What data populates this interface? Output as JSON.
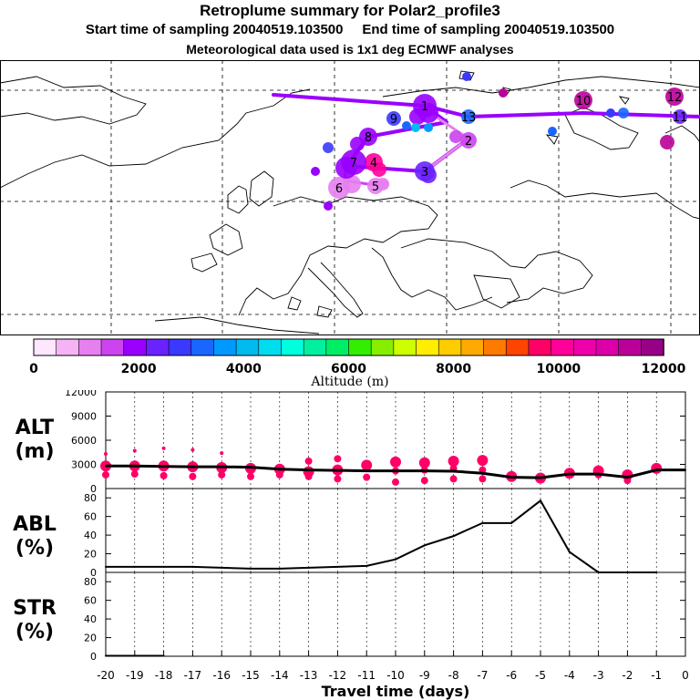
{
  "header": {
    "title": "Retroplume summary for Polar2_profile3",
    "sampling_line": "Start time of sampling 20040519.103500     End time of sampling 20040519.103500",
    "met_line": "Meteorological data used is 1x1 deg ECMWF analyses"
  },
  "colorbar": {
    "tick_labels": [
      "0",
      "2000",
      "4000",
      "6000",
      "8000",
      "10000",
      "12000"
    ],
    "label": "Altitude (m)",
    "colors": [
      "#ffe6ff",
      "#f5b3f5",
      "#e680f0",
      "#cc44ee",
      "#9900ff",
      "#6a22ff",
      "#3a3aff",
      "#1a66ff",
      "#0099ff",
      "#00bbee",
      "#00ddee",
      "#00ffdd",
      "#00f0a0",
      "#00ee66",
      "#33ee00",
      "#88ee00",
      "#ccff00",
      "#ffee00",
      "#ffcc00",
      "#ffaa00",
      "#ff7a00",
      "#ff4400",
      "#ff0066",
      "#ff0099",
      "#ee00aa",
      "#dd00aa",
      "#bb0099",
      "#990088"
    ]
  },
  "map": {
    "trajectory_labels": [
      "1",
      "2",
      "3",
      "4",
      "5",
      "6",
      "7",
      "8",
      "9",
      "10",
      "11",
      "12",
      "13"
    ],
    "clusters": [
      {
        "label": "1",
        "color": "#9900ff"
      },
      {
        "label": "2",
        "color": "#cc44ee"
      },
      {
        "label": "3",
        "color": "#6a22ff"
      },
      {
        "label": "4",
        "color": "#ff0099"
      },
      {
        "label": "5",
        "color": "#e680f0"
      },
      {
        "label": "6",
        "color": "#e680f0"
      },
      {
        "label": "7",
        "color": "#9900ff"
      },
      {
        "label": "8",
        "color": "#9900ff"
      },
      {
        "label": "9",
        "color": "#3a3aff"
      },
      {
        "label": "10",
        "color": "#bb0099"
      },
      {
        "label": "11",
        "color": "#6a22ff"
      },
      {
        "label": "12",
        "color": "#bb0099"
      },
      {
        "label": "13",
        "color": "#1a66ff"
      }
    ]
  },
  "chart_data": [
    {
      "type": "line",
      "panel": "ALT",
      "ylabel_line1": "ALT",
      "ylabel_line2": "(m)",
      "ylim": [
        0,
        12000
      ],
      "yticks": [
        "0",
        "3000",
        "6000",
        "9000",
        "12000"
      ],
      "x": [
        -20,
        -19,
        -18,
        -17,
        -16,
        -15,
        -14,
        -13,
        -12,
        -11,
        -10,
        -9,
        -8,
        -7,
        -6,
        -5,
        -4,
        -3,
        -2,
        -1,
        0
      ],
      "values": [
        2800,
        2800,
        2750,
        2700,
        2700,
        2650,
        2400,
        2300,
        2250,
        2200,
        2200,
        2200,
        2150,
        1900,
        1400,
        1350,
        1800,
        1800,
        1400,
        2300,
        2300
      ],
      "cluster_altitudes": [
        {
          "x": -20,
          "y": [
            2800,
            4300,
            1700
          ]
        },
        {
          "x": -19,
          "y": [
            2800,
            4700,
            1800
          ]
        },
        {
          "x": -18,
          "y": [
            2800,
            5000,
            1600
          ]
        },
        {
          "x": -17,
          "y": [
            2700,
            4800,
            1500
          ]
        },
        {
          "x": -16,
          "y": [
            2600,
            4400,
            1700
          ]
        },
        {
          "x": -15,
          "y": [
            2500,
            1500
          ]
        },
        {
          "x": -14,
          "y": [
            2400,
            1700
          ]
        },
        {
          "x": -13,
          "y": [
            2100,
            3400,
            1500
          ]
        },
        {
          "x": -12,
          "y": [
            2300,
            3700,
            1200
          ]
        },
        {
          "x": -11,
          "y": [
            2900,
            1400
          ]
        },
        {
          "x": -10,
          "y": [
            3300,
            2200,
            800
          ]
        },
        {
          "x": -9,
          "y": [
            3200,
            2300,
            1000
          ]
        },
        {
          "x": -8,
          "y": [
            3400,
            2500,
            1200
          ]
        },
        {
          "x": -7,
          "y": [
            3500,
            2300,
            1200
          ]
        },
        {
          "x": -6,
          "y": [
            1500,
            1300
          ]
        },
        {
          "x": -5,
          "y": [
            1300,
            1400
          ]
        },
        {
          "x": -4,
          "y": [
            1900
          ]
        },
        {
          "x": -3,
          "y": [
            2200,
            1700
          ]
        },
        {
          "x": -2,
          "y": [
            1700,
            1000
          ]
        },
        {
          "x": -1,
          "y": [
            2500
          ]
        }
      ]
    },
    {
      "type": "line",
      "panel": "ABL",
      "ylabel_line1": "ABL",
      "ylabel_line2": "(%)",
      "ylim": [
        0,
        90
      ],
      "yticks": [
        "0",
        "20",
        "40",
        "60",
        "80"
      ],
      "x": [
        -20,
        -19,
        -18,
        -17,
        -16,
        -15,
        -14,
        -13,
        -12,
        -11,
        -10,
        -9,
        -8,
        -7,
        -6,
        -5,
        -4,
        -3,
        -2,
        -1,
        0
      ],
      "values": [
        6,
        6,
        6,
        6,
        5,
        4,
        4,
        5,
        6,
        7,
        14,
        29,
        39,
        53,
        53,
        77,
        22,
        0,
        0,
        0,
        null
      ]
    },
    {
      "type": "line",
      "panel": "STR",
      "ylabel_line1": "STR",
      "ylabel_line2": "(%)",
      "ylim": [
        0,
        90
      ],
      "yticks": [
        "0",
        "20",
        "40",
        "60",
        "80"
      ],
      "x": [
        -20,
        -19,
        -18
      ],
      "values": [
        0.5,
        0.5,
        0.5
      ]
    }
  ],
  "x_axis": {
    "ticks": [
      "-20",
      "-19",
      "-18",
      "-17",
      "-16",
      "-15",
      "-14",
      "-13",
      "-12",
      "-11",
      "-10",
      "-9",
      "-8",
      "-7",
      "-6",
      "-5",
      "-4",
      "-3",
      "-2",
      "-1",
      "0"
    ],
    "label": "Travel time (days)"
  }
}
